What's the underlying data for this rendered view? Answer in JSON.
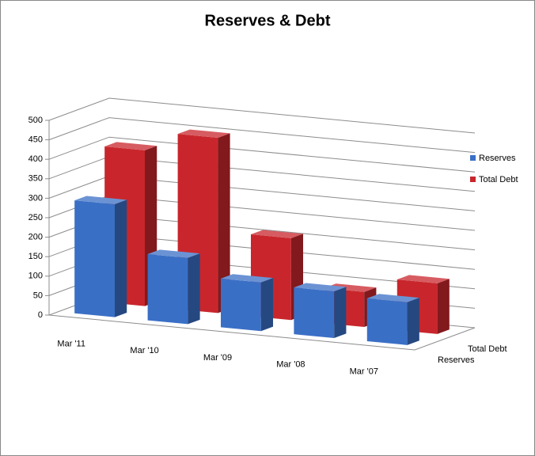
{
  "chart_data": {
    "type": "bar3d",
    "title": "Reserves & Debt",
    "categories": [
      "Mar '11",
      "Mar '10",
      "Mar '09",
      "Mar '08",
      "Mar '07"
    ],
    "series": [
      {
        "name": "Reserves",
        "color": "#3a6fc6",
        "values": [
          290,
          170,
          125,
          120,
          110
        ]
      },
      {
        "name": "Total Debt",
        "color": "#c8262c",
        "values": [
          400,
          450,
          210,
          90,
          130
        ]
      }
    ],
    "ylim": [
      0,
      500
    ],
    "yticks": [
      0,
      50,
      100,
      150,
      200,
      250,
      300,
      350,
      400,
      450,
      500
    ],
    "grid": true,
    "legend": "right"
  }
}
